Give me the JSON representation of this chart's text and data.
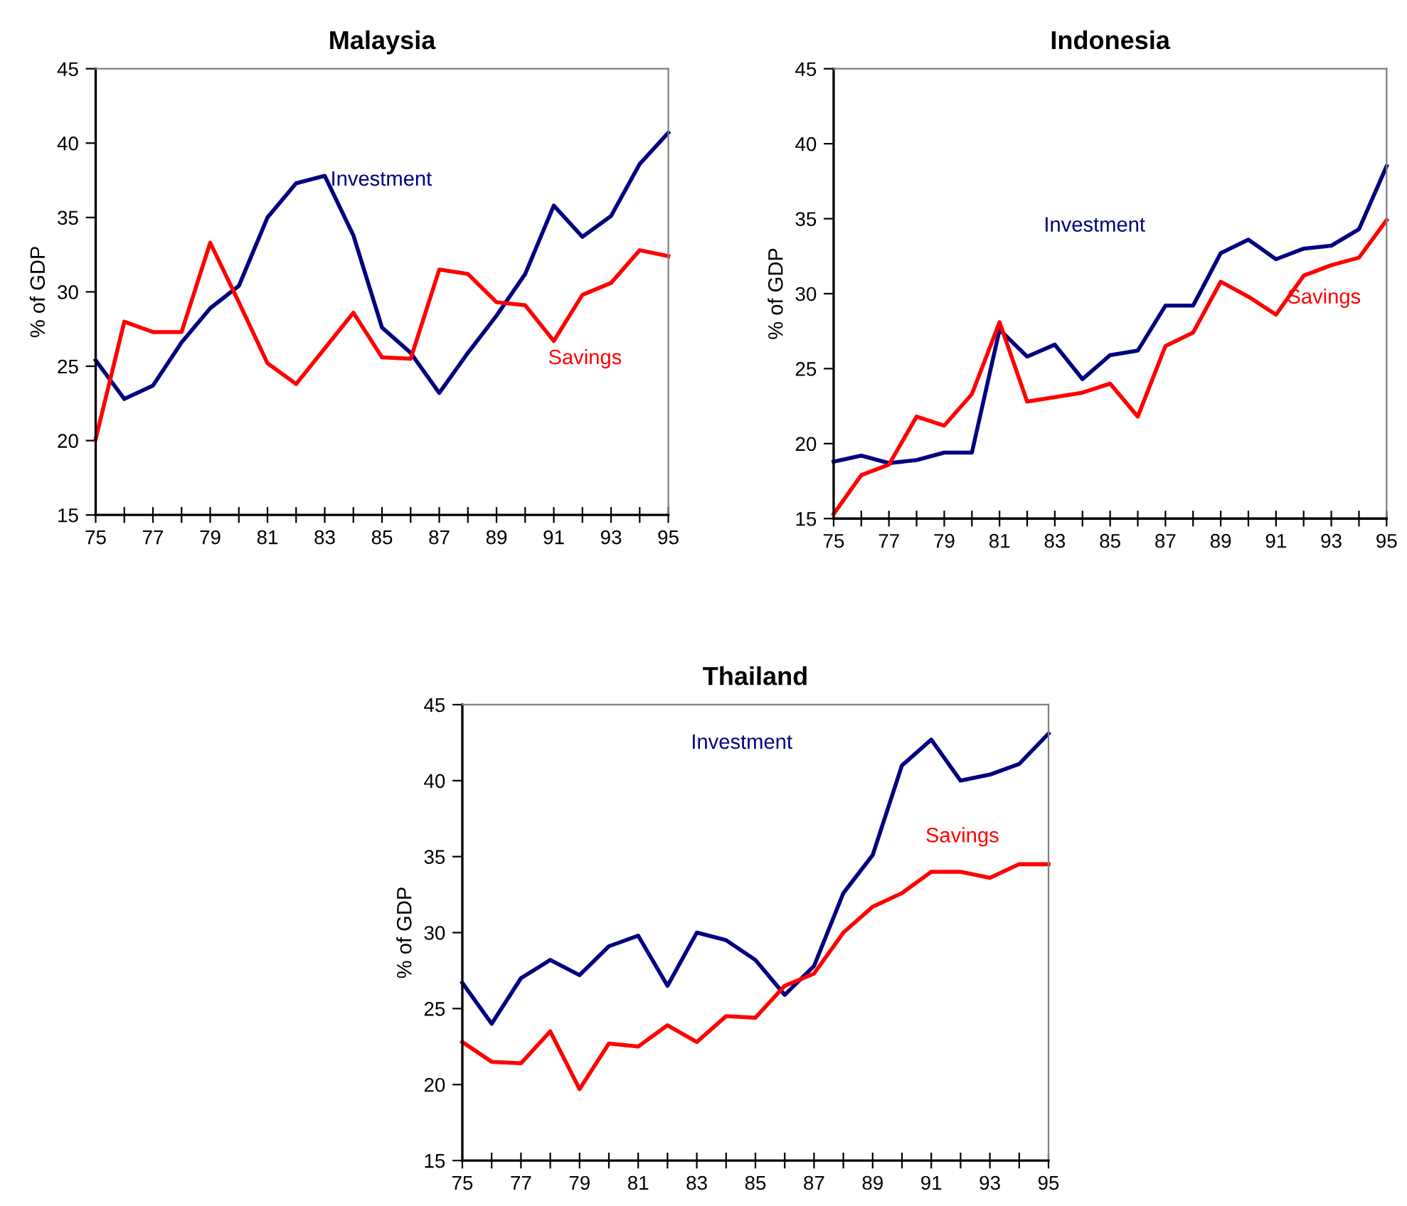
{
  "chart_data": [
    {
      "type": "line",
      "title": "Malaysia",
      "ylabel": "% of GDP",
      "x": [
        75,
        76,
        77,
        78,
        79,
        80,
        81,
        82,
        83,
        84,
        85,
        86,
        87,
        88,
        89,
        90,
        91,
        92,
        93,
        94,
        95
      ],
      "xlim": [
        75,
        95
      ],
      "ylim": [
        15,
        45
      ],
      "yticks": [
        15,
        20,
        25,
        30,
        35,
        40,
        45
      ],
      "xticks": [
        75,
        {
          "value": 76,
          "label": null
        },
        77,
        {
          "value": 78,
          "label": null
        },
        79,
        {
          "value": 80,
          "label": null
        },
        81,
        {
          "value": 82,
          "label": null
        },
        83,
        {
          "value": 84,
          "label": null
        },
        85,
        {
          "value": 86,
          "label": null
        },
        87,
        {
          "value": 88,
          "label": null
        },
        89,
        {
          "value": 90,
          "label": null
        },
        91,
        {
          "value": 92,
          "label": null
        },
        93,
        {
          "value": 94,
          "label": null
        },
        95
      ],
      "grid": false,
      "legend": false,
      "series": [
        {
          "name": "Investment",
          "color": "#000080",
          "values": [
            25.4,
            22.8,
            23.7,
            26.6,
            28.9,
            30.4,
            35.0,
            37.3,
            37.8,
            33.8,
            27.6,
            25.9,
            23.2,
            25.9,
            28.4,
            31.2,
            35.8,
            33.7,
            35.1,
            38.6,
            40.7
          ]
        },
        {
          "name": "Savings",
          "color": "#ff0000",
          "values": [
            20.1,
            28.0,
            27.3,
            27.3,
            33.3,
            29.3,
            25.2,
            23.8,
            26.2,
            28.6,
            25.6,
            25.5,
            31.5,
            31.2,
            29.3,
            29.1,
            26.7,
            29.8,
            30.6,
            32.8,
            32.4
          ]
        }
      ]
    },
    {
      "type": "line",
      "title": "Indonesia",
      "ylabel": "% of GDP",
      "x": [
        75,
        76,
        77,
        78,
        79,
        80,
        81,
        82,
        83,
        84,
        85,
        86,
        87,
        88,
        89,
        90,
        91,
        92,
        93,
        94,
        95
      ],
      "xlim": [
        75,
        95
      ],
      "ylim": [
        15,
        45
      ],
      "yticks": [
        15,
        20,
        25,
        30,
        35,
        40,
        45
      ],
      "xticks": [
        75,
        {
          "value": 76,
          "label": null
        },
        77,
        {
          "value": 78,
          "label": null
        },
        79,
        {
          "value": 80,
          "label": null
        },
        81,
        {
          "value": 82,
          "label": null
        },
        83,
        {
          "value": 84,
          "label": null
        },
        85,
        {
          "value": 86,
          "label": null
        },
        87,
        {
          "value": 88,
          "label": null
        },
        89,
        {
          "value": 90,
          "label": null
        },
        91,
        {
          "value": 92,
          "label": null
        },
        93,
        {
          "value": 94,
          "label": null
        },
        95
      ],
      "grid": false,
      "legend": false,
      "series": [
        {
          "name": "Investment",
          "color": "#000080",
          "values": [
            18.8,
            19.2,
            18.7,
            18.9,
            19.4,
            19.4,
            27.6,
            25.8,
            26.6,
            24.3,
            25.9,
            26.2,
            29.2,
            29.2,
            32.7,
            33.6,
            32.3,
            33.0,
            33.2,
            34.3,
            38.5
          ]
        },
        {
          "name": "Savings",
          "color": "#ff0000",
          "values": [
            15.3,
            17.9,
            18.6,
            21.8,
            21.2,
            23.3,
            28.1,
            22.8,
            23.1,
            23.4,
            24.0,
            21.8,
            26.5,
            27.4,
            30.8,
            29.8,
            28.6,
            31.2,
            31.9,
            32.4,
            34.9
          ]
        }
      ]
    },
    {
      "type": "line",
      "title": "Thailand",
      "ylabel": "% of GDP",
      "x": [
        75,
        76,
        77,
        78,
        79,
        80,
        81,
        82,
        83,
        84,
        85,
        86,
        87,
        88,
        89,
        90,
        91,
        92,
        93,
        94,
        95
      ],
      "xlim": [
        75,
        95
      ],
      "ylim": [
        15,
        45
      ],
      "yticks": [
        15,
        20,
        25,
        30,
        35,
        40,
        45
      ],
      "xticks": [
        75,
        {
          "value": 76,
          "label": null
        },
        77,
        {
          "value": 78,
          "label": null
        },
        79,
        {
          "value": 80,
          "label": null
        },
        81,
        {
          "value": 82,
          "label": null
        },
        83,
        {
          "value": 84,
          "label": null
        },
        85,
        {
          "value": 86,
          "label": null
        },
        87,
        {
          "value": 88,
          "label": null
        },
        89,
        {
          "value": 90,
          "label": null
        },
        91,
        {
          "value": 92,
          "label": null
        },
        93,
        {
          "value": 94,
          "label": null
        },
        95
      ],
      "grid": false,
      "legend": false,
      "series": [
        {
          "name": "Investment",
          "color": "#000080",
          "values": [
            26.7,
            24.0,
            27.0,
            28.2,
            27.2,
            29.1,
            29.8,
            26.5,
            30.0,
            29.5,
            28.2,
            25.9,
            27.8,
            32.6,
            35.1,
            41.0,
            42.7,
            40.0,
            40.4,
            41.1,
            43.1
          ]
        },
        {
          "name": "Savings",
          "color": "#ff0000",
          "values": [
            22.8,
            21.5,
            21.4,
            23.5,
            19.7,
            22.7,
            22.5,
            23.9,
            22.8,
            24.5,
            24.4,
            26.5,
            27.3,
            30.0,
            31.7,
            32.6,
            34.0,
            34.0,
            33.6,
            34.5,
            34.5
          ]
        }
      ]
    }
  ]
}
